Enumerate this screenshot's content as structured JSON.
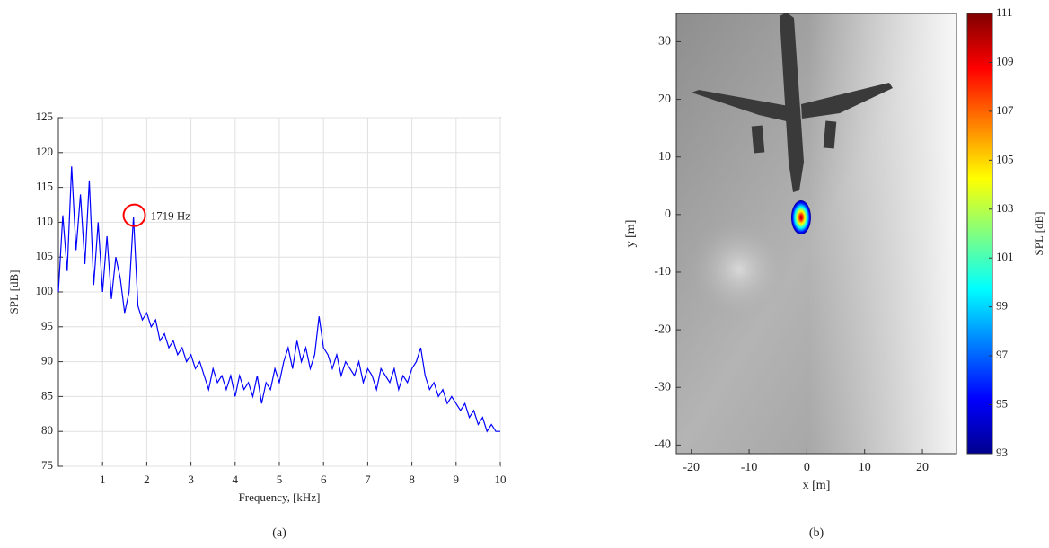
{
  "chart_data": [
    {
      "type": "line",
      "caption": "(a)",
      "x_label": "Frequency, [kHz]",
      "y_label": "SPL [dB]",
      "color": "#0000ff",
      "grid": true,
      "xlim": [
        0,
        10
      ],
      "ylim": [
        75,
        125
      ],
      "xticks": [
        1,
        2,
        3,
        4,
        5,
        6,
        7,
        8,
        9,
        10
      ],
      "yticks": [
        75,
        80,
        85,
        90,
        95,
        100,
        105,
        110,
        115,
        120,
        125
      ],
      "x": [
        0.0,
        0.1,
        0.2,
        0.3,
        0.4,
        0.5,
        0.6,
        0.7,
        0.8,
        0.9,
        1.0,
        1.1,
        1.2,
        1.3,
        1.4,
        1.5,
        1.6,
        1.7,
        1.8,
        1.9,
        2.0,
        2.1,
        2.2,
        2.3,
        2.4,
        2.5,
        2.6,
        2.7,
        2.8,
        2.9,
        3.0,
        3.1,
        3.2,
        3.3,
        3.4,
        3.5,
        3.6,
        3.7,
        3.8,
        3.9,
        4.0,
        4.1,
        4.2,
        4.3,
        4.4,
        4.5,
        4.6,
        4.7,
        4.8,
        4.9,
        5.0,
        5.1,
        5.2,
        5.3,
        5.4,
        5.5,
        5.6,
        5.7,
        5.8,
        5.9,
        6.0,
        6.1,
        6.2,
        6.3,
        6.4,
        6.5,
        6.6,
        6.7,
        6.8,
        6.9,
        7.0,
        7.1,
        7.2,
        7.3,
        7.4,
        7.5,
        7.6,
        7.7,
        7.8,
        7.9,
        8.0,
        8.1,
        8.2,
        8.3,
        8.4,
        8.5,
        8.6,
        8.7,
        8.8,
        8.9,
        9.0,
        9.1,
        9.2,
        9.3,
        9.4,
        9.5,
        9.6,
        9.7,
        9.8,
        9.9,
        10.0
      ],
      "values": [
        100,
        111,
        103,
        118,
        106,
        114,
        104,
        116,
        101,
        110,
        100,
        108,
        99,
        105,
        102,
        97,
        100,
        110.8,
        98,
        96,
        97,
        95,
        96,
        93,
        94,
        92,
        93,
        91,
        92,
        90,
        91,
        89,
        90,
        88,
        86,
        89,
        87,
        88,
        86,
        88,
        85,
        88,
        86,
        87,
        85,
        88,
        84,
        87,
        86,
        89,
        87,
        90,
        92,
        89,
        93,
        90,
        92,
        89,
        91,
        96.5,
        92,
        91,
        89,
        91,
        88,
        90,
        89,
        88,
        90,
        87,
        89,
        88,
        86,
        89,
        88,
        87,
        89,
        86,
        88,
        87,
        89,
        90,
        92,
        88,
        86,
        87,
        85,
        86,
        84,
        85,
        84,
        83,
        84,
        82,
        83,
        81,
        82,
        80,
        81,
        80,
        80
      ],
      "annotation": {
        "text": "1719 Hz",
        "x": 1.719,
        "y": 111,
        "color": "#ff0000"
      }
    },
    {
      "type": "image",
      "caption": "(b)",
      "x_label": "x [m]",
      "y_label": "y [m]",
      "colorbar_label": "SPL [dB]",
      "xlim": [
        -22.6,
        25.9
      ],
      "ylim": [
        -41.5,
        34.9
      ],
      "xticks": [
        -20,
        -10,
        0,
        10,
        20
      ],
      "yticks": [
        -40,
        -30,
        -20,
        -10,
        0,
        10,
        20,
        30
      ],
      "clim": [
        93,
        111
      ],
      "cticks": [
        93,
        95,
        97,
        99,
        101,
        103,
        105,
        107,
        109,
        111
      ],
      "colormap": [
        "#00008f",
        "#0000ff",
        "#0080ff",
        "#00ffff",
        "#80ff80",
        "#ffff00",
        "#ff8000",
        "#ff0000",
        "#800000"
      ],
      "source": {
        "x": -1,
        "y": -0.5
      }
    }
  ]
}
